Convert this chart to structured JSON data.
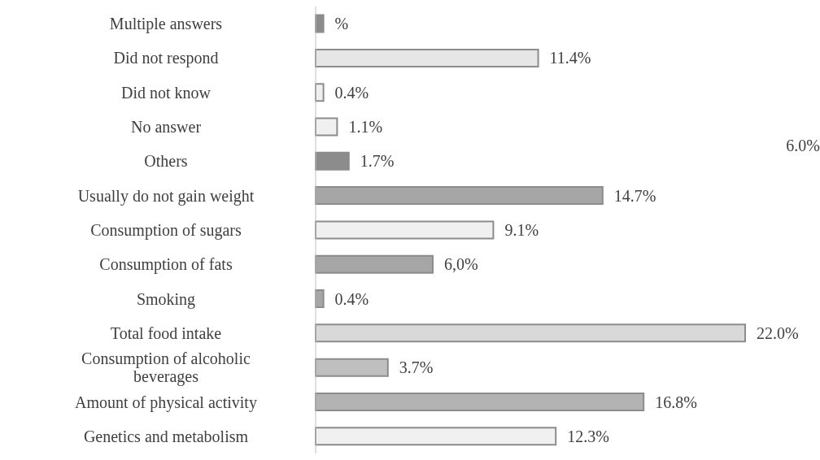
{
  "chart_data": {
    "type": "bar",
    "orientation": "horizontal",
    "categories": [
      "Multiple answers",
      "Did not respond",
      "Did not know",
      "No answer",
      "Others",
      "Usually do not gain weight",
      "Consumption of sugars",
      "Consumption of fats",
      "Smoking",
      "Total food intake",
      "Consumption of alcoholic beverages",
      "Amount of physical activity",
      "Genetics and metabolism"
    ],
    "values": [
      0.4,
      11.4,
      0.4,
      1.1,
      1.7,
      14.7,
      9.1,
      6.0,
      0.4,
      22.0,
      3.7,
      16.8,
      12.3
    ],
    "colors": [
      "#8c8c8c",
      "#e6e6e6",
      "#f0f0f0",
      "#f0f0f0",
      "#8c8c8c",
      "#a6a6a6",
      "#f0f0f0",
      "#a6a6a6",
      "#a6a6a6",
      "#d9d9d9",
      "#bfbfbf",
      "#b3b3b3",
      "#f0f0f0"
    ],
    "value_labels": [
      "%",
      "11.4%",
      "0.4%",
      "1.1%",
      "1.7%",
      "14.7%",
      "9.1%",
      "6,0%",
      "0.4%",
      "22.0%",
      "3.7%",
      "16.8%",
      "12.3%"
    ],
    "annotations": [
      "6.0%"
    ]
  }
}
